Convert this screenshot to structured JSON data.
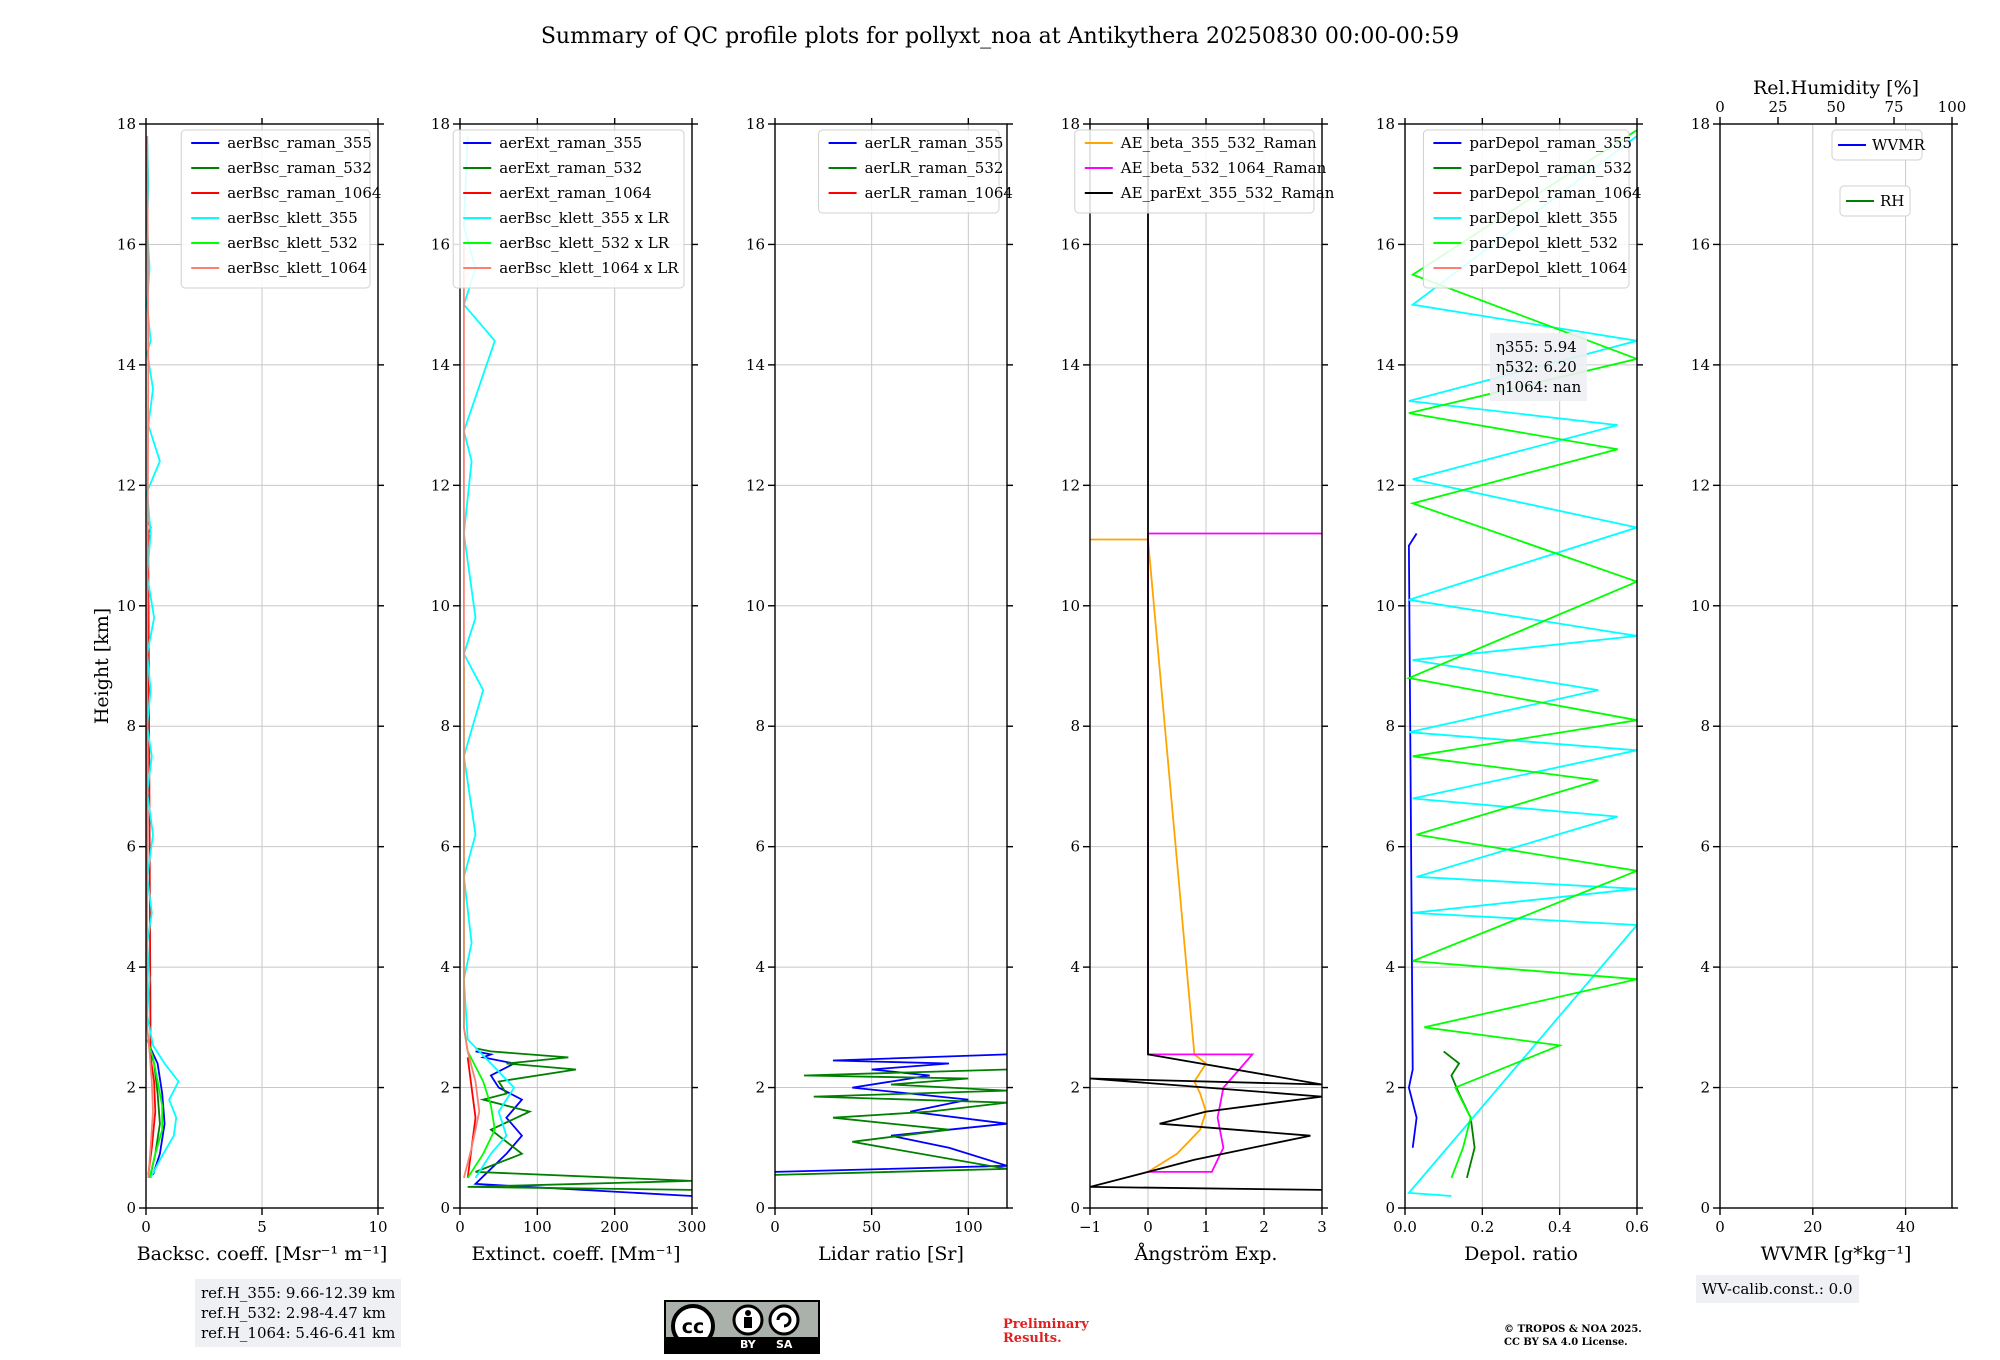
{
  "figure": {
    "title": "Summary of QC profile plots for pollyxt_noa at Antikythera 20250830 00:00-00:59",
    "ref_heights": [
      "ref.H_355: 9.66-12.39 km",
      "ref.H_532: 2.98-4.47 km",
      "ref.H_1064: 5.46-6.41 km"
    ],
    "eta_labels": [
      "η355: 5.94",
      "η532: 6.20",
      "η1064: nan"
    ],
    "wv_calib": "WV-calib.const.: 0.0",
    "preliminary": "Preliminary\nResults.",
    "copyright": "© TROPOS & NOA 2025.\nCC BY SA 4.0 License.",
    "license_badge": {
      "icon": "cc-by-sa-icon",
      "left_text": "BY",
      "right_text": "SA",
      "badge_color": "#aab0aa"
    }
  },
  "chart_data": [
    {
      "type": "line",
      "xlabel": "Backsc. coeff. [Msr⁻¹ m⁻¹]",
      "ylabel": "Height [km]",
      "xlim": [
        0,
        10
      ],
      "ylim": [
        0,
        18
      ],
      "xticks": [
        0,
        5,
        10
      ],
      "yticks": [
        0,
        2,
        4,
        6,
        8,
        10,
        12,
        14,
        16,
        18
      ],
      "grid": true,
      "legend_position": "top-right",
      "series": [
        {
          "name": "aerBsc_raman_355",
          "color": "#0000ff",
          "x": [
            0.3,
            0.6,
            0.8,
            0.7,
            0.5,
            0.2
          ],
          "y": [
            0.55,
            0.9,
            1.4,
            1.9,
            2.4,
            2.65
          ]
        },
        {
          "name": "aerBsc_raman_532",
          "color": "#008000",
          "x": [
            0.2,
            0.4,
            0.6,
            0.5,
            0.35,
            0.15
          ],
          "y": [
            0.55,
            0.9,
            1.4,
            1.9,
            2.4,
            2.65
          ]
        },
        {
          "name": "aerBsc_raman_1064",
          "color": "#ff0000",
          "x": [
            0.1,
            0.25,
            0.4,
            0.35,
            0.2,
            0.1,
            0.15,
            0.1,
            0.2,
            0.1
          ],
          "y": [
            0.55,
            1.0,
            1.6,
            2.1,
            2.5,
            10.9,
            11.05,
            11.2,
            11.3,
            11.4
          ]
        },
        {
          "name": "aerBsc_klett_355",
          "color": "#00ffff",
          "x": [
            0.2,
            0.6,
            1.2,
            1.3,
            1.0,
            1.4,
            0.8,
            0.3,
            0.05,
            0.15,
            0.05,
            0.25,
            0.05,
            0.3,
            0.05,
            0.25,
            0.05,
            0.2,
            0.05,
            0.35,
            0.05,
            0.2,
            0.05,
            0.6,
            0.1,
            0.3,
            0.05,
            0.2,
            0.05,
            0.15,
            0.05,
            0.1,
            0.05
          ],
          "y": [
            0.5,
            0.8,
            1.2,
            1.5,
            1.8,
            2.1,
            2.4,
            2.7,
            3.2,
            3.8,
            4.4,
            4.9,
            5.5,
            6.2,
            6.9,
            7.5,
            8.0,
            8.6,
            9.2,
            9.8,
            10.5,
            11.2,
            11.9,
            12.4,
            13.0,
            13.6,
            14.2,
            14.4,
            15.0,
            15.6,
            16.3,
            17.0,
            17.8
          ]
        },
        {
          "name": "aerBsc_klett_532",
          "color": "#00ff00",
          "x": [
            0.15,
            0.4,
            0.7,
            0.7,
            0.5,
            0.3,
            0.05
          ],
          "y": [
            0.5,
            0.9,
            1.3,
            1.7,
            2.1,
            2.5,
            2.8
          ]
        },
        {
          "name": "aerBsc_klett_1064",
          "color": "#fa8072",
          "x": [
            0.1,
            0.2,
            0.3,
            0.25,
            0.15,
            0.05,
            0.05,
            0.1,
            0.05
          ],
          "y": [
            0.5,
            1.0,
            1.6,
            2.1,
            2.6,
            3.0,
            9.0,
            14.0,
            17.8
          ]
        }
      ]
    },
    {
      "type": "line",
      "xlabel": "Extinct. coeff. [Mm⁻¹]",
      "ylabel": "",
      "xlim": [
        0,
        300
      ],
      "ylim": [
        0,
        18
      ],
      "xticks": [
        0,
        100,
        200,
        300
      ],
      "yticks": [
        0,
        2,
        4,
        6,
        8,
        10,
        12,
        14,
        16,
        18
      ],
      "grid": true,
      "legend_position": "top-right",
      "series": [
        {
          "name": "aerExt_raman_355",
          "color": "#0000ff",
          "x": [
            300,
            20,
            60,
            80,
            60,
            80,
            50,
            40,
            70,
            30,
            40,
            20
          ],
          "y": [
            0.2,
            0.4,
            0.9,
            1.2,
            1.5,
            1.8,
            2.0,
            2.2,
            2.4,
            2.5,
            2.55,
            2.6
          ]
        },
        {
          "name": "aerExt_raman_532",
          "color": "#008000",
          "x": [
            300,
            10,
            300,
            20,
            80,
            40,
            90,
            30,
            60,
            50,
            150,
            60,
            140,
            40,
            20
          ],
          "y": [
            0.3,
            0.35,
            0.45,
            0.6,
            0.9,
            1.3,
            1.6,
            1.8,
            1.9,
            2.1,
            2.3,
            2.4,
            2.5,
            2.6,
            2.65
          ]
        },
        {
          "name": "aerExt_raman_1064",
          "color": "#ff0000",
          "x": [
            10,
            20,
            10
          ],
          "y": [
            0.5,
            1.5,
            2.5
          ]
        },
        {
          "name": "aerBsc_klett_355 x LR",
          "color": "#00ffff",
          "x": [
            20,
            40,
            60,
            50,
            70,
            40,
            10,
            5,
            15,
            5,
            20,
            5,
            30,
            5,
            20,
            5,
            15,
            5,
            45,
            5,
            20,
            5,
            10
          ],
          "y": [
            0.5,
            0.9,
            1.2,
            1.6,
            2.0,
            2.4,
            2.8,
            3.8,
            4.4,
            5.5,
            6.2,
            7.5,
            8.6,
            9.2,
            9.8,
            11.2,
            12.4,
            12.9,
            14.4,
            15.0,
            15.6,
            16.3,
            17.8
          ]
        },
        {
          "name": "aerBsc_klett_532 x LR",
          "color": "#00ff00",
          "x": [
            10,
            30,
            45,
            40,
            30,
            10,
            5,
            5
          ],
          "y": [
            0.5,
            0.9,
            1.3,
            1.7,
            2.1,
            2.6,
            3.0,
            9.0
          ]
        },
        {
          "name": "aerBsc_klett_1064 x LR",
          "color": "#fa8072",
          "x": [
            5,
            15,
            25,
            20,
            10,
            5,
            5,
            5
          ],
          "y": [
            0.5,
            1.0,
            1.6,
            2.1,
            2.6,
            3.0,
            12.0,
            16.0
          ]
        }
      ]
    },
    {
      "type": "line",
      "xlabel": "Lidar ratio [Sr]",
      "ylabel": "",
      "xlim": [
        0,
        120
      ],
      "ylim": [
        0,
        18
      ],
      "xticks": [
        0,
        50,
        100
      ],
      "yticks": [
        0,
        2,
        4,
        6,
        8,
        10,
        12,
        14,
        16,
        18
      ],
      "grid": true,
      "legend_position": "top-right",
      "series": [
        {
          "name": "aerLR_raman_355",
          "color": "#0000ff",
          "x": [
            0,
            120,
            90,
            60,
            120,
            70,
            100,
            40,
            80,
            50,
            90,
            30,
            120
          ],
          "y": [
            0.6,
            0.7,
            1.0,
            1.2,
            1.4,
            1.6,
            1.8,
            2.0,
            2.2,
            2.3,
            2.4,
            2.45,
            2.55
          ]
        },
        {
          "name": "aerLR_raman_532",
          "color": "#008000",
          "x": [
            0,
            120,
            40,
            90,
            30,
            80,
            120,
            20,
            120,
            60,
            100,
            15,
            120
          ],
          "y": [
            0.55,
            0.65,
            1.1,
            1.3,
            1.5,
            1.6,
            1.75,
            1.85,
            1.95,
            2.05,
            2.15,
            2.2,
            2.3
          ]
        },
        {
          "name": "aerLR_raman_1064",
          "color": "#ff0000",
          "x": [],
          "y": []
        }
      ]
    },
    {
      "type": "line",
      "xlabel": "Ångström Exp.",
      "ylabel": "",
      "xlim": [
        -1,
        3
      ],
      "ylim": [
        0,
        18
      ],
      "xticks": [
        -1,
        0,
        1,
        2,
        3
      ],
      "yticks": [
        0,
        2,
        4,
        6,
        8,
        10,
        12,
        14,
        16,
        18
      ],
      "grid": true,
      "legend_position": "top-right",
      "series": [
        {
          "name": "AE_beta_355_532_Raman",
          "color": "#ffa500",
          "x": [
            0,
            0,
            0.5,
            0.9,
            1.0,
            0.9,
            0.8,
            1.0,
            0.8,
            0,
            -1
          ],
          "y": [
            0.6,
            0.6,
            0.9,
            1.3,
            1.6,
            1.9,
            2.1,
            2.4,
            2.55,
            11.1,
            11.1
          ]
        },
        {
          "name": "AE_beta_532_1064_Raman",
          "color": "#ff00ff",
          "x": [
            0,
            1.1,
            1.3,
            1.2,
            1.3,
            1.8,
            0,
            0,
            3
          ],
          "y": [
            0.6,
            0.6,
            1.0,
            1.5,
            2.0,
            2.55,
            2.55,
            11.2,
            11.2
          ]
        },
        {
          "name": "AE_parExt_355_532_Raman",
          "color": "#000000",
          "x": [
            3,
            -1,
            0.8,
            2.8,
            0.2,
            1.0,
            3,
            -1,
            3,
            0,
            0
          ],
          "y": [
            0.3,
            0.35,
            0.8,
            1.2,
            1.4,
            1.6,
            1.85,
            2.15,
            2.05,
            2.55,
            18
          ]
        }
      ]
    },
    {
      "type": "line",
      "xlabel": "Depol. ratio",
      "ylabel": "",
      "xlim": [
        0.0,
        0.6
      ],
      "ylim": [
        0,
        18
      ],
      "xticks": [
        0.0,
        0.2,
        0.4,
        0.6
      ],
      "yticks": [
        0,
        2,
        4,
        6,
        8,
        10,
        12,
        14,
        16,
        18
      ],
      "grid": true,
      "legend_position": "top-right",
      "series": [
        {
          "name": "parDepol_raman_355",
          "color": "#0000ff",
          "x": [
            0.02,
            0.03,
            0.01,
            0.02,
            0.01,
            0.03
          ],
          "y": [
            1.0,
            1.5,
            2.0,
            2.3,
            11.0,
            11.2
          ]
        },
        {
          "name": "parDepol_raman_532",
          "color": "#008000",
          "x": [
            0.16,
            0.18,
            0.17,
            0.14,
            0.12,
            0.14,
            0.1
          ],
          "y": [
            0.5,
            1.0,
            1.5,
            1.9,
            2.2,
            2.4,
            2.6
          ]
        },
        {
          "name": "parDepol_raman_1064",
          "color": "#ff0000",
          "x": [],
          "y": []
        },
        {
          "name": "parDepol_klett_355",
          "color": "#00ffff",
          "x": [
            0.12,
            0.01,
            0.6,
            0.02,
            0.6,
            0.03,
            0.55,
            0.02,
            0.6,
            0.01,
            0.5,
            0.02,
            0.6,
            0.01,
            0.6,
            0.02,
            0.55,
            0.01,
            0.6,
            0.02,
            0.6
          ],
          "y": [
            0.2,
            0.25,
            4.7,
            4.9,
            5.3,
            5.5,
            6.5,
            6.8,
            7.6,
            7.9,
            8.6,
            9.1,
            9.5,
            10.1,
            11.3,
            12.1,
            13.0,
            13.4,
            14.4,
            15.0,
            17.8
          ]
        },
        {
          "name": "parDepol_klett_532",
          "color": "#00ff00",
          "x": [
            0.12,
            0.15,
            0.17,
            0.13,
            0.4,
            0.05,
            0.6,
            0.02,
            0.6,
            0.03,
            0.5,
            0.02,
            0.6,
            0.01,
            0.6,
            0.02,
            0.55,
            0.01,
            0.6,
            0.02,
            0.6
          ],
          "y": [
            0.5,
            1.0,
            1.5,
            2.0,
            2.7,
            3.0,
            3.8,
            4.1,
            5.6,
            6.2,
            7.1,
            7.5,
            8.1,
            8.8,
            10.4,
            11.7,
            12.6,
            13.2,
            14.1,
            15.5,
            17.9
          ]
        },
        {
          "name": "parDepol_klett_1064",
          "color": "#fa8072",
          "x": [],
          "y": []
        }
      ]
    },
    {
      "type": "line",
      "xlabel": "WVMR [g*kg⁻¹]",
      "x2label": "Rel.Humidity [%]",
      "ylabel": "",
      "xlim": [
        0,
        50
      ],
      "x2lim": [
        0,
        100
      ],
      "ylim": [
        0,
        18
      ],
      "xticks": [
        0,
        20,
        40
      ],
      "x2ticks": [
        0,
        25,
        50,
        75,
        100
      ],
      "yticks": [
        0,
        2,
        4,
        6,
        8,
        10,
        12,
        14,
        16,
        18
      ],
      "grid": true,
      "legend_position": "top-right",
      "series": [
        {
          "name": "WVMR",
          "color": "#0000ff",
          "x": [],
          "y": []
        },
        {
          "name": "RH",
          "color": "#008000",
          "x": [],
          "y": []
        }
      ]
    }
  ]
}
